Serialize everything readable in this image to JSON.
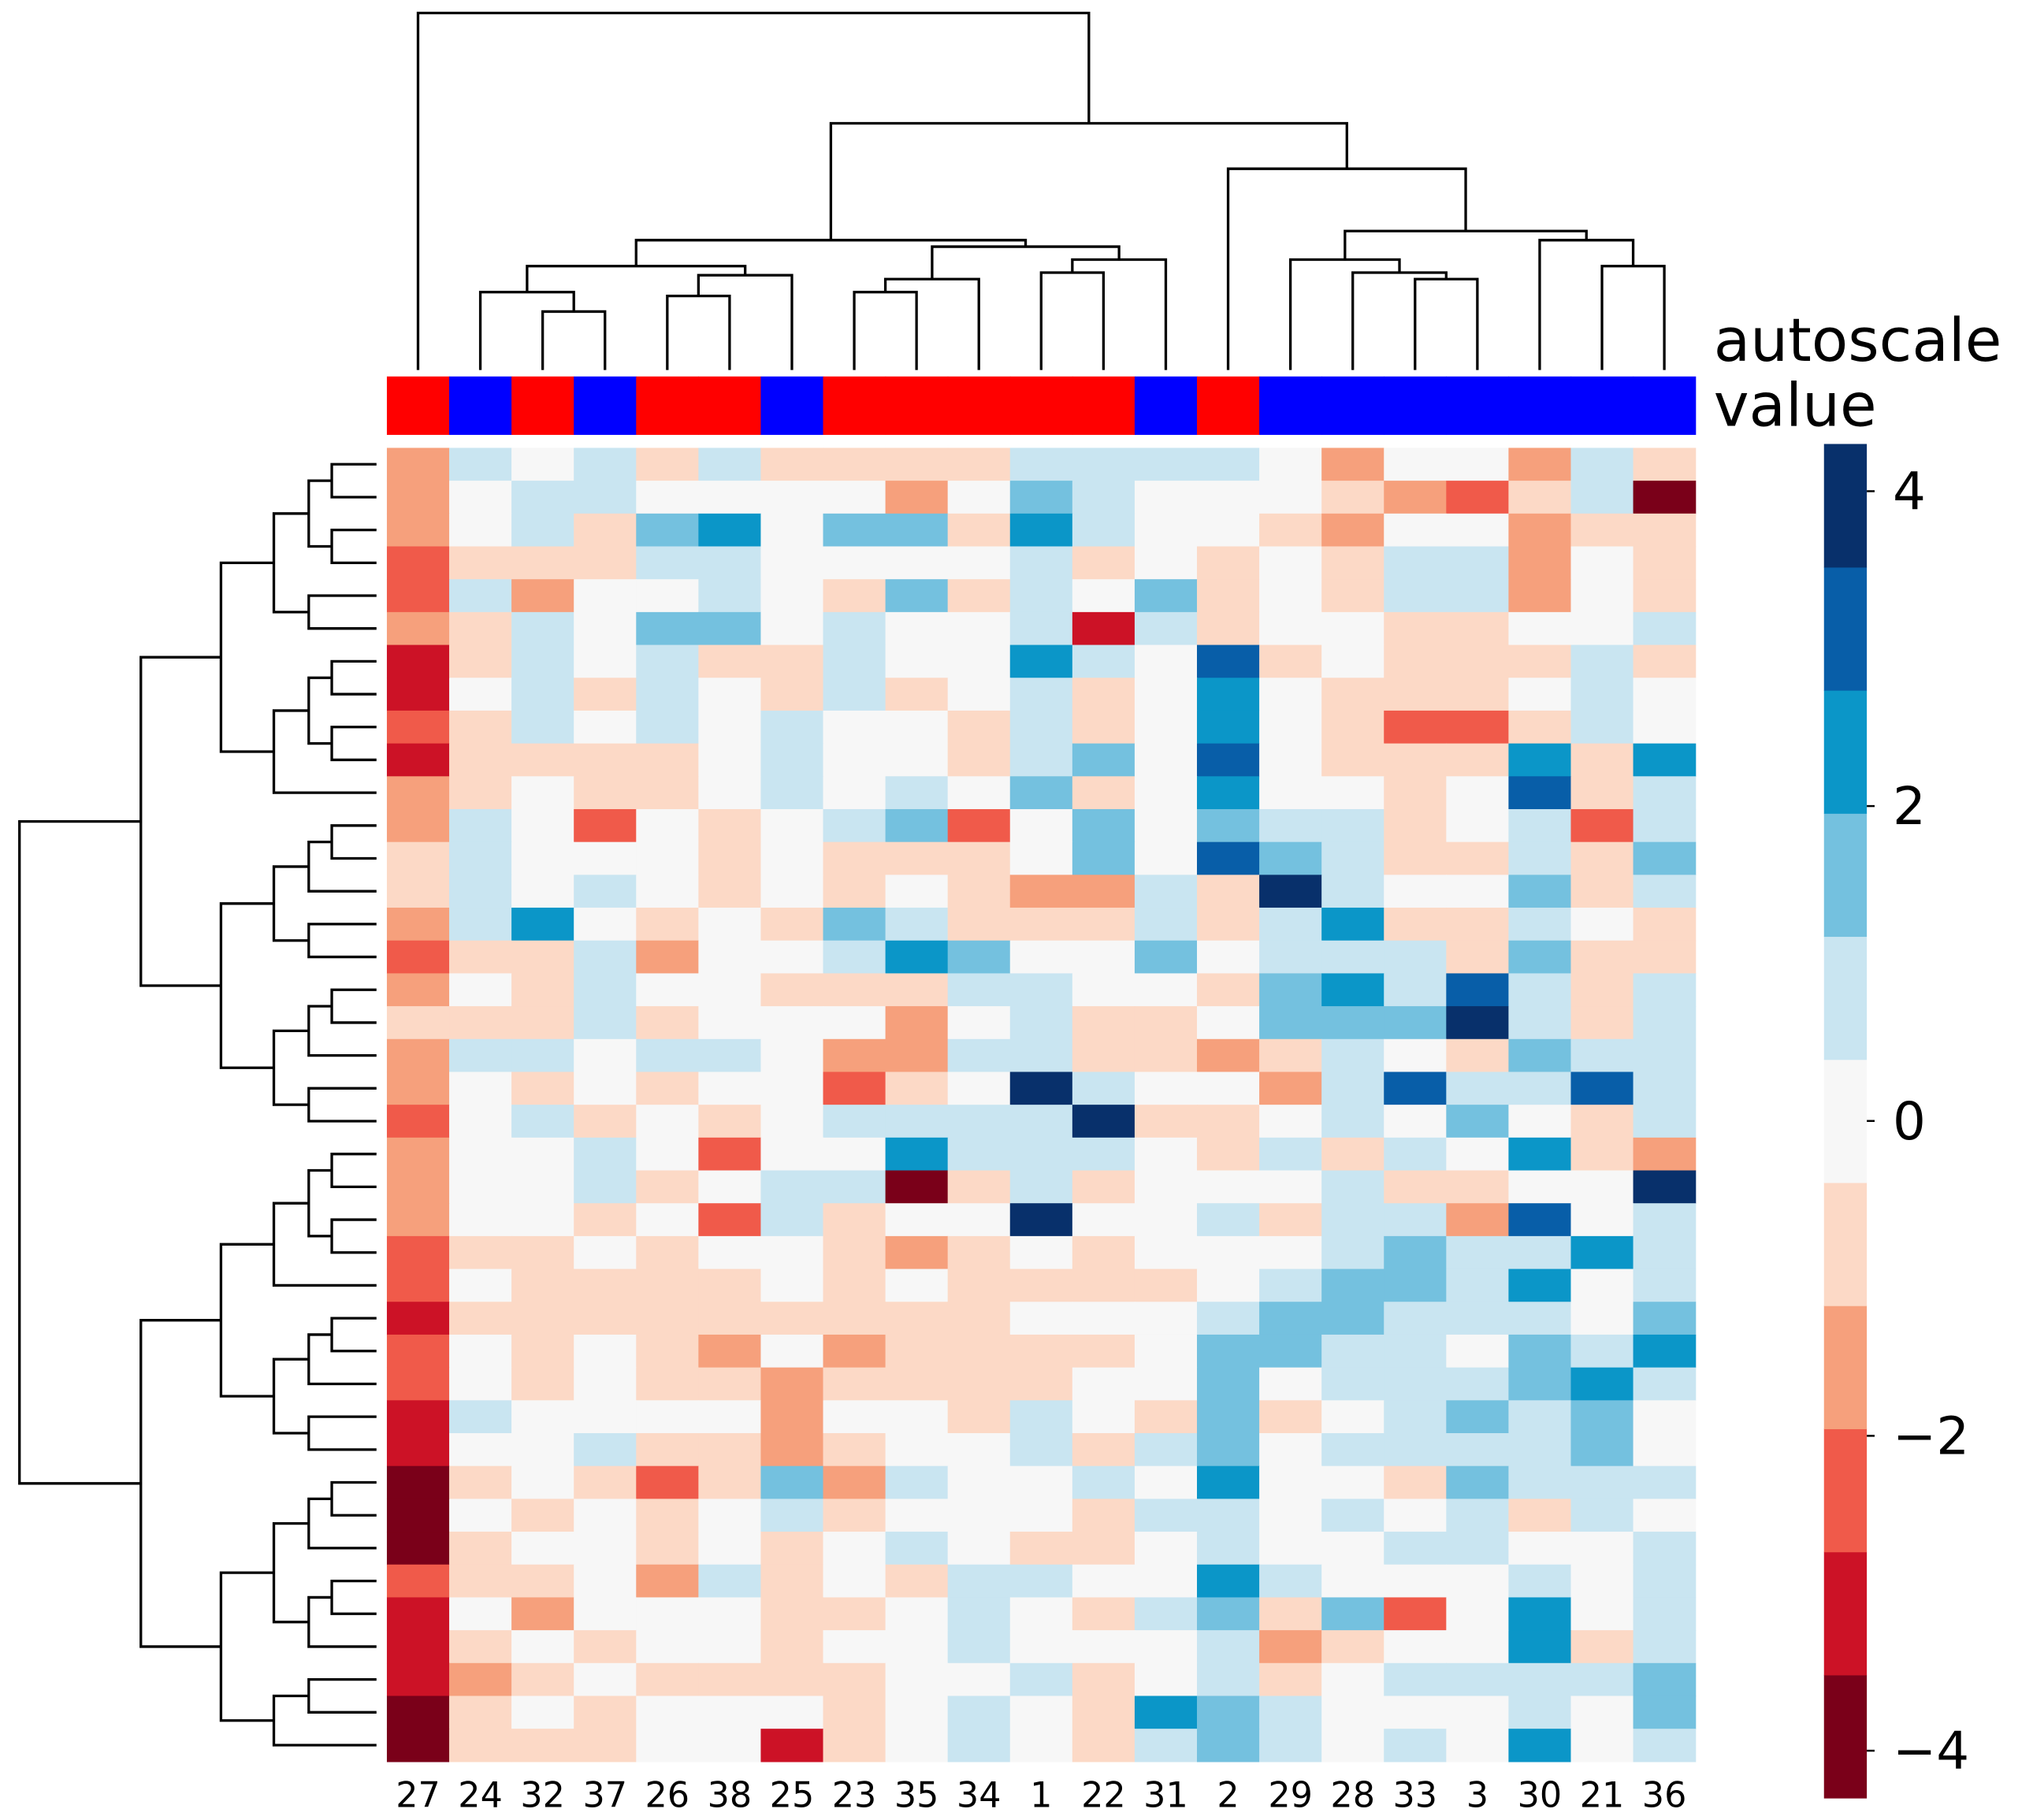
{
  "chart_data": {
    "type": "heatmap",
    "legend_title_lines": [
      "autoscale",
      "value"
    ],
    "columns": [
      "27",
      "24",
      "32",
      "37",
      "26",
      "38",
      "25",
      "23",
      "35",
      "34",
      "1",
      "22",
      "31",
      "2",
      "29",
      "28",
      "33",
      "3",
      "30",
      "21",
      "36"
    ],
    "column_colors": [
      "#ff0000",
      "#0000ff",
      "#ff0000",
      "#0000ff",
      "#ff0000",
      "#ff0000",
      "#0000ff",
      "#ff0000",
      "#ff0000",
      "#ff0000",
      "#ff0000",
      "#ff0000",
      "#0000ff",
      "#ff0000",
      "#0000ff",
      "#0000ff",
      "#0000ff",
      "#0000ff",
      "#0000ff",
      "#0000ff",
      "#0000ff"
    ],
    "colorscale": [
      "#7a0019",
      "#cc1226",
      "#f05a4a",
      "#f6a07c",
      "#fcd9c6",
      "#f7f7f7",
      "#c9e5f1",
      "#74c1df",
      "#0b96c8",
      "#085ea8",
      "#08306b"
    ],
    "zlim": [
      -4.3,
      4.3
    ],
    "zticks": [
      4,
      2,
      0,
      {
        "value": -2,
        "label": "−2"
      },
      {
        "value": -4,
        "label": "−4"
      }
    ],
    "values": [
      [
        -1.5,
        0.5,
        0.3,
        0.4,
        -0.6,
        0.5,
        -0.4,
        -0.7,
        -0.5,
        -0.6,
        0.6,
        0.9,
        0.6,
        0.5,
        0,
        -1.5,
        0.3,
        0,
        -1.6,
        0.8,
        -0.5
      ],
      [
        -1.8,
        0,
        0.4,
        0.6,
        -0.3,
        0.3,
        0,
        -0.3,
        -1.2,
        0,
        1.2,
        0.6,
        0.3,
        0.2,
        0,
        -0.5,
        -1.6,
        -2.0,
        -0.7,
        0.4,
        -4.2
      ],
      [
        -1.2,
        0.3,
        0.6,
        -0.8,
        1.2,
        2.4,
        0,
        1.2,
        1.5,
        -0.9,
        2.0,
        0.7,
        0.2,
        0,
        -0.8,
        -1.2,
        0,
        0.3,
        -1.3,
        -0.8,
        -0.4
      ],
      [
        -2.6,
        -0.7,
        -0.4,
        -0.6,
        0.4,
        0.5,
        0,
        0.3,
        0.3,
        0,
        0.6,
        -0.4,
        0,
        -0.5,
        -0.3,
        -0.4,
        0.8,
        1.0,
        -1.8,
        0,
        -0.7
      ],
      [
        -2.3,
        0.4,
        -1.3,
        -0.3,
        0.3,
        0.6,
        0,
        -0.5,
        1.6,
        -0.4,
        0.6,
        0.3,
        1.8,
        -0.8,
        0.3,
        -0.5,
        0.5,
        0.7,
        -1.4,
        0.3,
        -0.4
      ],
      [
        -1.6,
        -0.7,
        1.1,
        0,
        1.5,
        1.3,
        0,
        0.4,
        0.3,
        0,
        0.8,
        -2.8,
        0.9,
        -0.7,
        0,
        0,
        -0.5,
        -0.4,
        0,
        -0.3,
        0.4
      ],
      [
        -3.2,
        -0.5,
        0.6,
        0,
        0.6,
        -0.5,
        -1.1,
        0.7,
        0,
        0,
        2.2,
        0.6,
        0,
        3.1,
        -0.5,
        0,
        -0.9,
        -1.0,
        -1.1,
        0.4,
        -0.6
      ],
      [
        -3.3,
        0,
        0.4,
        -0.4,
        0.8,
        0,
        -0.8,
        0.5,
        -0.6,
        0,
        0.6,
        -0.4,
        0,
        2.4,
        0,
        -0.6,
        -0.7,
        -0.4,
        0,
        0.6,
        0
      ],
      [
        -2.3,
        -0.6,
        0.8,
        0,
        0.9,
        0,
        0.4,
        0,
        0.3,
        -0.6,
        0.9,
        -0.5,
        0,
        2.0,
        0.3,
        -0.4,
        -2.0,
        -2.2,
        -0.5,
        0.6,
        0
      ],
      [
        -3.0,
        -0.8,
        -0.4,
        -1.0,
        -0.9,
        0,
        0.7,
        0,
        0,
        -0.9,
        0.5,
        1.4,
        0,
        3.4,
        0,
        -0.5,
        -0.9,
        -0.6,
        2.4,
        -1.1,
        2.2
      ],
      [
        -1.4,
        -0.6,
        0,
        -0.7,
        -0.8,
        0,
        0.5,
        0,
        0.4,
        0,
        1.5,
        -0.6,
        0,
        2.0,
        0,
        0,
        -0.4,
        0,
        3.3,
        -1.0,
        0.6
      ],
      [
        -1.2,
        0.4,
        0,
        -2.1,
        0,
        -0.5,
        0,
        0.6,
        1.2,
        -2.0,
        0,
        1.8,
        0,
        1.6,
        0.5,
        0.8,
        -0.5,
        0,
        0.6,
        -2.4,
        0.8
      ],
      [
        -1.1,
        0.5,
        0,
        0,
        0,
        -0.8,
        0,
        -1.0,
        -0.8,
        -0.7,
        0,
        1.6,
        0,
        3.2,
        1.5,
        0.4,
        -0.4,
        -0.5,
        0.7,
        -0.6,
        1.2
      ],
      [
        -1.0,
        0.8,
        0.3,
        0.4,
        0,
        -0.6,
        0,
        -0.4,
        0,
        -0.9,
        -1.6,
        -1.2,
        1.0,
        -0.5,
        4.2,
        0.4,
        0,
        -0.3,
        1.5,
        -0.4,
        0.7
      ],
      [
        -1.3,
        0.8,
        2.7,
        0,
        -0.5,
        0,
        -0.6,
        1.4,
        0.6,
        -0.8,
        -0.6,
        -0.6,
        1.0,
        -0.4,
        0.8,
        2.2,
        -0.7,
        -0.8,
        0.5,
        0.3,
        -0.5
      ],
      [
        -2.0,
        -0.4,
        -0.4,
        1.0,
        -1.2,
        0,
        0,
        0.8,
        2.2,
        1.5,
        -0.3,
        -0.3,
        1.2,
        0,
        0.7,
        0.5,
        0.8,
        -0.5,
        1.2,
        -0.5,
        -0.7
      ],
      [
        -1.4,
        0,
        -0.6,
        0.5,
        0,
        -0.3,
        -0.5,
        -0.6,
        -0.8,
        0.4,
        0.4,
        -0.3,
        0,
        -0.7,
        1.2,
        2.7,
        0.5,
        3.2,
        1.0,
        -0.6,
        0.7
      ],
      [
        -1.0,
        -0.4,
        -0.9,
        0.8,
        -0.5,
        0,
        0,
        0,
        -1.3,
        0,
        0.9,
        -0.5,
        -0.4,
        0,
        1.7,
        1.4,
        1.4,
        3.6,
        0.9,
        -0.5,
        0.4
      ],
      [
        -1.2,
        0.5,
        0.7,
        0.3,
        0.6,
        0.5,
        0,
        -1.3,
        -1.2,
        0.5,
        1.0,
        -1.0,
        -0.5,
        -1.2,
        -0.6,
        0.6,
        -0.3,
        -0.5,
        1.4,
        0.6,
        1.0
      ],
      [
        -1.5,
        0.3,
        -0.5,
        0,
        -0.5,
        0,
        0,
        -2.0,
        -0.8,
        0,
        4.0,
        0.4,
        0,
        0,
        -1.8,
        0.8,
        2.8,
        0.4,
        0.7,
        2.9,
        0.6
      ],
      [
        -2.3,
        0,
        0.6,
        -0.4,
        0,
        -0.6,
        0,
        0.5,
        0.4,
        0.8,
        0.6,
        4.0,
        -0.4,
        -0.6,
        0,
        0.8,
        0,
        1.8,
        0,
        -0.4,
        0.5
      ],
      [
        -1.4,
        -0.3,
        0,
        0.5,
        0,
        -2.7,
        0,
        0,
        2.5,
        0.7,
        0.6,
        0.4,
        0,
        -0.8,
        0.5,
        -0.5,
        0.5,
        0,
        2.0,
        -1.0,
        -1.2
      ],
      [
        -1.2,
        0,
        0,
        0.5,
        -0.6,
        0,
        0.5,
        0.4,
        -4.0,
        -0.5,
        0.7,
        -0.6,
        0,
        0,
        0.3,
        0.6,
        -0.4,
        -0.7,
        0,
        0,
        4.2
      ],
      [
        -1.5,
        0.3,
        0,
        -0.8,
        0,
        -2.7,
        0.7,
        -0.4,
        0,
        0,
        4.1,
        0,
        0,
        0.6,
        -0.6,
        0.8,
        0.5,
        -1.6,
        3.0,
        0.3,
        0.8
      ],
      [
        -2.2,
        -0.6,
        -0.8,
        0,
        -0.6,
        0,
        0,
        -0.7,
        -1.7,
        -0.4,
        0,
        -0.6,
        0,
        0,
        0,
        0.5,
        1.8,
        0.6,
        0.5,
        2.7,
        0.8
      ],
      [
        -2.1,
        0,
        -0.9,
        -0.4,
        -0.6,
        -0.4,
        0,
        -0.5,
        0,
        -0.4,
        -0.4,
        -0.6,
        -0.4,
        0,
        0.5,
        1.5,
        1.6,
        0.4,
        2.4,
        0.3,
        0.6
      ],
      [
        -2.9,
        -0.4,
        -0.7,
        -0.6,
        -0.7,
        -0.8,
        -0.6,
        -0.5,
        -0.8,
        -0.4,
        0,
        -0.3,
        0,
        0.5,
        1.4,
        1.2,
        1.0,
        0.4,
        0.5,
        0,
        1.2
      ],
      [
        -2.2,
        0,
        -0.6,
        0,
        -0.8,
        -1.2,
        0,
        -1.3,
        -1.0,
        -0.9,
        -0.7,
        -0.4,
        0,
        1.3,
        1.3,
        0.6,
        0.5,
        -0.3,
        1.5,
        0.5,
        2.0
      ],
      [
        -2.0,
        0,
        -0.8,
        0,
        -0.6,
        -0.6,
        -1.3,
        -0.8,
        -0.6,
        -0.5,
        -0.6,
        0,
        0,
        1.7,
        0,
        0.4,
        0.9,
        0.5,
        1.4,
        2.5,
        0.5
      ],
      [
        -3.0,
        0.4,
        0,
        0,
        0,
        0,
        -1.3,
        0.3,
        0,
        -0.4,
        0.8,
        0,
        -0.6,
        1.8,
        -0.9,
        0,
        0.5,
        1.2,
        0.7,
        1.6,
        0
      ],
      [
        -3.4,
        0,
        0,
        0.5,
        -0.6,
        -0.5,
        -1.3,
        -0.5,
        0,
        0,
        0.5,
        -0.4,
        0.5,
        1.7,
        0,
        0.5,
        0.6,
        0.5,
        1.0,
        1.5,
        -0.3
      ],
      [
        -3.8,
        -0.6,
        0,
        -0.4,
        -2.0,
        -0.5,
        1.5,
        -1.2,
        0.6,
        0,
        0,
        0.5,
        0,
        2.3,
        0,
        -0.3,
        -0.4,
        1.4,
        0.6,
        0.5,
        0.5
      ],
      [
        -4.1,
        0,
        -0.6,
        0,
        -0.4,
        0,
        0.6,
        -1.0,
        0,
        0,
        0,
        -0.6,
        0.5,
        1.0,
        0,
        0.4,
        0,
        0.5,
        -0.4,
        0.6,
        0
      ],
      [
        -4.0,
        -0.4,
        0,
        0,
        -0.6,
        0,
        -0.4,
        0,
        1.0,
        0,
        -0.5,
        -0.5,
        0,
        0.8,
        0,
        -0.3,
        0.6,
        0.6,
        0,
        0.3,
        1.0
      ],
      [
        -2.2,
        -0.6,
        -0.6,
        0,
        -1.6,
        0.6,
        -0.4,
        0,
        -0.6,
        0.5,
        0.6,
        0,
        0,
        2.6,
        0.5,
        0,
        0,
        0,
        0.5,
        0,
        0.8
      ],
      [
        -3.0,
        0,
        -1.3,
        0,
        -0.3,
        0,
        -0.6,
        -0.6,
        0,
        0.8,
        0,
        -0.4,
        0.5,
        1.5,
        -0.9,
        1.6,
        -2.0,
        0,
        2.4,
        0,
        0.5
      ],
      [
        -3.3,
        -1.0,
        0,
        -0.4,
        0,
        0,
        -0.7,
        0,
        0,
        1.1,
        0,
        0,
        0,
        0.6,
        -1.8,
        -0.6,
        0,
        0,
        2.6,
        -0.4,
        1.0
      ],
      [
        -3.2,
        -1.3,
        -0.4,
        0,
        -0.5,
        -0.9,
        -0.7,
        -0.5,
        0,
        0,
        0.5,
        -0.6,
        0,
        0.8,
        -0.7,
        0,
        0.5,
        0.8,
        0.6,
        0.5,
        1.7
      ],
      [
        -3.8,
        -0.5,
        0,
        -0.4,
        0,
        0,
        0,
        -0.4,
        0,
        0.6,
        0,
        -0.4,
        2.3,
        1.7,
        0.5,
        0,
        0,
        0,
        0.9,
        0,
        1.6
      ],
      [
        -4.0,
        -0.6,
        -0.6,
        -0.6,
        0,
        0,
        -2.8,
        -0.6,
        0,
        0.5,
        0,
        -0.6,
        0.6,
        1.8,
        0.5,
        0,
        0.5,
        0,
        2.0,
        0,
        0.8
      ]
    ]
  }
}
